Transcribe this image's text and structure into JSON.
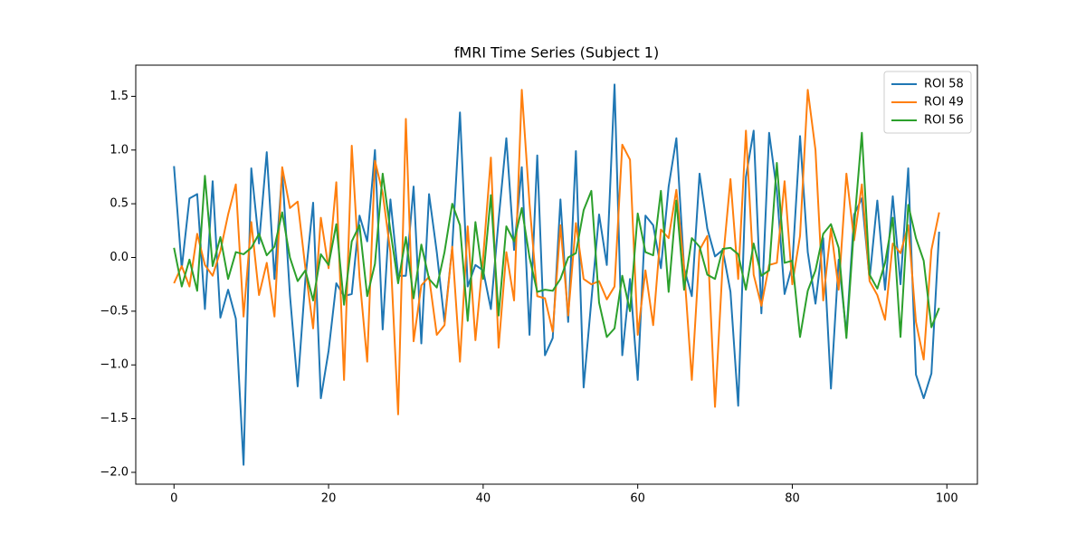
{
  "chart_data": {
    "type": "line",
    "title": "fMRI Time Series (Subject 1)",
    "x": [
      0,
      1,
      2,
      3,
      4,
      5,
      6,
      7,
      8,
      9,
      10,
      11,
      12,
      13,
      14,
      15,
      16,
      17,
      18,
      19,
      20,
      21,
      22,
      23,
      24,
      25,
      26,
      27,
      28,
      29,
      30,
      31,
      32,
      33,
      34,
      35,
      36,
      37,
      38,
      39,
      40,
      41,
      42,
      43,
      44,
      45,
      46,
      47,
      48,
      49,
      50,
      51,
      52,
      53,
      54,
      55,
      56,
      57,
      58,
      59,
      60,
      61,
      62,
      63,
      64,
      65,
      66,
      67,
      68,
      69,
      70,
      71,
      72,
      73,
      74,
      75,
      76,
      77,
      78,
      79,
      80,
      81,
      82,
      83,
      84,
      85,
      86,
      87,
      88,
      89,
      90,
      91,
      92,
      93,
      94,
      95,
      96,
      97,
      98,
      99
    ],
    "series": [
      {
        "name": "ROI 58",
        "color": "#1f77b4",
        "values": [
          0.85,
          -0.1,
          0.55,
          0.59,
          -0.48,
          0.71,
          -0.56,
          -0.3,
          -0.57,
          -1.93,
          0.83,
          0.13,
          0.98,
          -0.2,
          0.8,
          -0.35,
          -1.2,
          -0.2,
          0.51,
          -1.31,
          -0.87,
          -0.24,
          -0.36,
          -0.34,
          0.39,
          0.15,
          1.0,
          -0.67,
          0.54,
          -0.17,
          -0.17,
          0.66,
          -0.8,
          0.59,
          0.05,
          -0.6,
          0.1,
          1.35,
          -0.27,
          -0.07,
          -0.12,
          -0.48,
          0.35,
          1.11,
          0.07,
          0.84,
          -0.72,
          0.95,
          -0.91,
          -0.75,
          0.54,
          -0.6,
          0.99,
          -1.21,
          -0.4,
          0.4,
          -0.07,
          1.61,
          -0.91,
          -0.2,
          -1.14,
          0.39,
          0.3,
          -0.1,
          0.66,
          1.11,
          -0.1,
          -0.36,
          0.78,
          0.27,
          0.01,
          0.07,
          -0.32,
          -1.38,
          0.75,
          1.18,
          -0.52,
          1.16,
          0.62,
          -0.34,
          -0.07,
          1.13,
          0.05,
          -0.43,
          0.18,
          -1.22,
          -0.02,
          -0.71,
          0.4,
          0.55,
          -0.2,
          0.53,
          -0.3,
          0.57,
          -0.25,
          0.83,
          -1.09,
          -1.31,
          -1.08,
          0.24
        ]
      },
      {
        "name": "ROI 49",
        "color": "#ff7f0e",
        "values": [
          -0.24,
          -0.08,
          -0.27,
          0.22,
          -0.07,
          -0.17,
          0.06,
          0.4,
          0.68,
          -0.55,
          0.33,
          -0.35,
          -0.05,
          -0.55,
          0.84,
          0.46,
          0.52,
          -0.1,
          -0.66,
          0.37,
          -0.1,
          0.7,
          -1.14,
          1.04,
          -0.18,
          -0.97,
          0.9,
          0.6,
          0.05,
          -1.46,
          1.29,
          -0.78,
          -0.26,
          -0.18,
          -0.72,
          -0.63,
          0.1,
          -0.97,
          0.29,
          -0.77,
          0.0,
          0.93,
          -0.84,
          0.05,
          -0.4,
          1.56,
          0.5,
          -0.36,
          -0.38,
          -0.69,
          0.3,
          -0.54,
          0.32,
          -0.2,
          -0.25,
          -0.22,
          -0.39,
          -0.27,
          1.05,
          0.91,
          -0.72,
          -0.12,
          -0.63,
          0.26,
          0.18,
          0.63,
          -0.1,
          -1.14,
          0.07,
          0.2,
          -1.39,
          -0.05,
          0.73,
          -0.2,
          1.18,
          -0.16,
          -0.45,
          -0.07,
          -0.05,
          0.71,
          -0.25,
          0.2,
          1.56,
          1.0,
          -0.4,
          0.27,
          -0.3,
          0.78,
          0.16,
          0.68,
          -0.22,
          -0.35,
          -0.58,
          0.13,
          0.04,
          0.3,
          -0.6,
          -0.95,
          0.07,
          0.42
        ]
      },
      {
        "name": "ROI 56",
        "color": "#2ca02c",
        "values": [
          0.09,
          -0.27,
          -0.02,
          -0.31,
          0.76,
          -0.08,
          0.19,
          -0.2,
          0.05,
          0.03,
          0.09,
          0.22,
          0.02,
          0.1,
          0.42,
          0.0,
          -0.22,
          -0.12,
          -0.4,
          0.03,
          -0.07,
          0.31,
          -0.44,
          0.15,
          0.3,
          -0.36,
          -0.06,
          0.78,
          0.25,
          -0.24,
          0.19,
          -0.38,
          0.12,
          -0.2,
          -0.28,
          0.05,
          0.5,
          0.3,
          -0.59,
          0.33,
          -0.2,
          0.58,
          -0.54,
          0.29,
          0.15,
          0.46,
          0.0,
          -0.32,
          -0.3,
          -0.31,
          -0.2,
          0.0,
          0.04,
          0.44,
          0.62,
          -0.42,
          -0.74,
          -0.66,
          -0.17,
          -0.5,
          0.41,
          0.05,
          0.02,
          0.62,
          -0.32,
          0.53,
          -0.3,
          0.18,
          0.1,
          -0.16,
          -0.2,
          0.08,
          0.09,
          0.03,
          -0.3,
          0.13,
          -0.17,
          -0.12,
          0.88,
          -0.05,
          -0.03,
          -0.74,
          -0.31,
          -0.12,
          0.22,
          0.31,
          0.09,
          -0.75,
          0.29,
          1.16,
          -0.16,
          -0.29,
          -0.05,
          0.37,
          -0.74,
          0.49,
          0.18,
          -0.03,
          -0.65,
          -0.47
        ]
      }
    ],
    "xlim": [
      -4.95,
      103.95
    ],
    "xticks": [
      0,
      20,
      40,
      60,
      80,
      100
    ],
    "ylim": [
      -2.11,
      1.79
    ],
    "yticks": [
      {
        "value": -2.0,
        "label": "−2.0"
      },
      {
        "value": -1.5,
        "label": "−1.5"
      },
      {
        "value": -1.0,
        "label": "−1.0"
      },
      {
        "value": -0.5,
        "label": "−0.5"
      },
      {
        "value": 0.0,
        "label": "0.0"
      },
      0.5,
      {
        "value": 1.0,
        "label": "1.0"
      },
      1.5
    ],
    "grid": false,
    "legend": "upper right"
  }
}
